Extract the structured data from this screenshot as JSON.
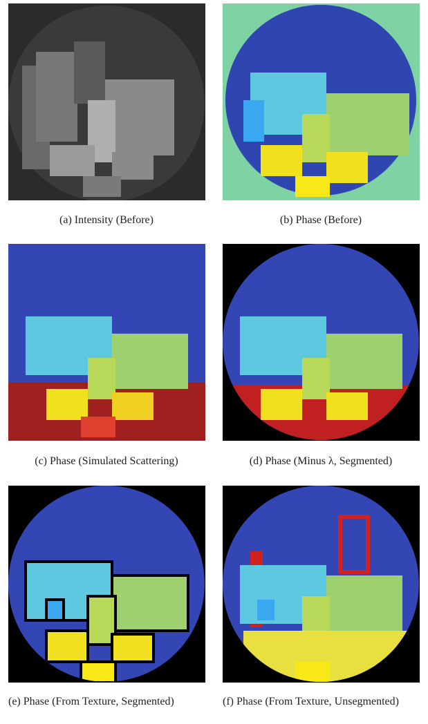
{
  "figure": {
    "panels": [
      {
        "caption": "(a) Intensity (Before)"
      },
      {
        "caption": "(b) Phase (Before)"
      },
      {
        "caption": "(c) Phase (Simulated Scattering)"
      },
      {
        "caption": "(d) Phase (Minus λ, Segmented)"
      },
      {
        "caption": "(e) Phase (From Texture, Segmented)"
      },
      {
        "caption": "(f) Phase (From Texture, Unsegmented)"
      }
    ]
  }
}
